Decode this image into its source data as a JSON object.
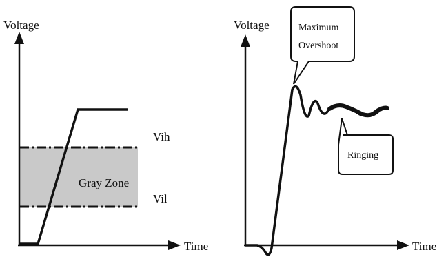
{
  "left_panel": {
    "y_axis_label": "Voltage",
    "x_axis_label": "Time",
    "vih_label": "Vih",
    "vil_label": "Vil",
    "zone_label": "Gray Zone"
  },
  "right_panel": {
    "y_axis_label": "Voltage",
    "x_axis_label": "Time",
    "callout_overshoot_line1": "Maximum",
    "callout_overshoot_line2": "Overshoot",
    "callout_ringing": "Ringing"
  },
  "colors": {
    "ink": "#111111",
    "gray_zone": "#c9c9c9",
    "background": "#ffffff"
  }
}
